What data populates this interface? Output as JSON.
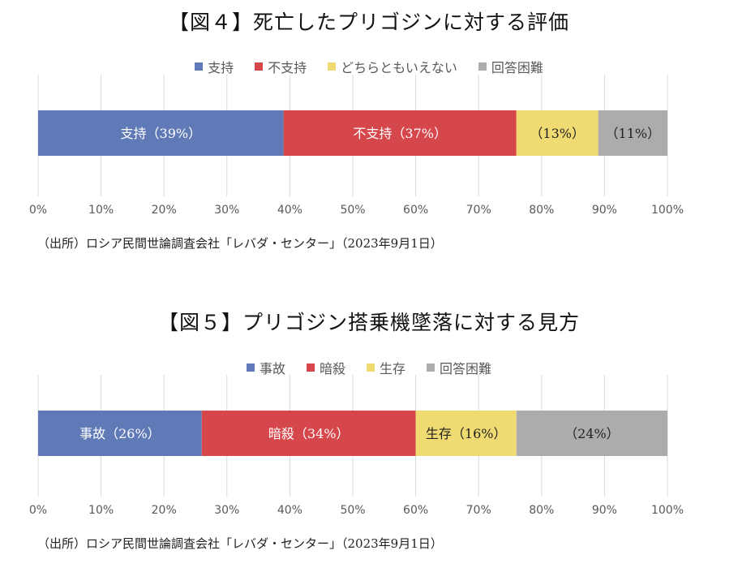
{
  "chart_data": [
    {
      "type": "bar",
      "orientation": "horizontal-stacked-100",
      "title": "【図４】死亡したプリゴジンに対する評価",
      "series": [
        {
          "name": "支持",
          "value": 39,
          "label": "支持（39%）",
          "color": "#6079B7",
          "label_color": "#ffffff"
        },
        {
          "name": "不支持",
          "value": 37,
          "label": "不支持（37%）",
          "color": "#D6474B",
          "label_color": "#ffffff"
        },
        {
          "name": "どちらともいえない",
          "value": 13,
          "label": "（13%）",
          "color": "#F0DB72",
          "label_color": "#222222"
        },
        {
          "name": "回答困難",
          "value": 11,
          "label": "（11%）",
          "color": "#ACACAC",
          "label_color": "#222222"
        }
      ],
      "xlim": [
        0,
        100
      ],
      "ticks": [
        "0%",
        "10%",
        "20%",
        "30%",
        "40%",
        "50%",
        "60%",
        "70%",
        "80%",
        "90%",
        "100%"
      ],
      "grid": true,
      "legend_position": "top-center",
      "source": "（出所）ロシア民間世論調査会社「レバダ・センター」（2023年9月1日）"
    },
    {
      "type": "bar",
      "orientation": "horizontal-stacked-100",
      "title": "【図５】プリゴジン搭乗機墜落に対する見方",
      "series": [
        {
          "name": "事故",
          "value": 26,
          "label": "事故（26%）",
          "color": "#6079B7",
          "label_color": "#ffffff"
        },
        {
          "name": "暗殺",
          "value": 34,
          "label": "暗殺（34%）",
          "color": "#D6474B",
          "label_color": "#ffffff"
        },
        {
          "name": "生存",
          "value": 16,
          "label": "生存（16%）",
          "color": "#F0DB72",
          "label_color": "#222222"
        },
        {
          "name": "回答困難",
          "value": 24,
          "label": "（24%）",
          "color": "#ACACAC",
          "label_color": "#222222"
        }
      ],
      "xlim": [
        0,
        100
      ],
      "ticks": [
        "0%",
        "10%",
        "20%",
        "30%",
        "40%",
        "50%",
        "60%",
        "70%",
        "80%",
        "90%",
        "100%"
      ],
      "grid": true,
      "legend_position": "top-center",
      "source": "（出所）ロシア民間世論調査会社「レバダ・センター」（2023年9月1日）"
    }
  ]
}
